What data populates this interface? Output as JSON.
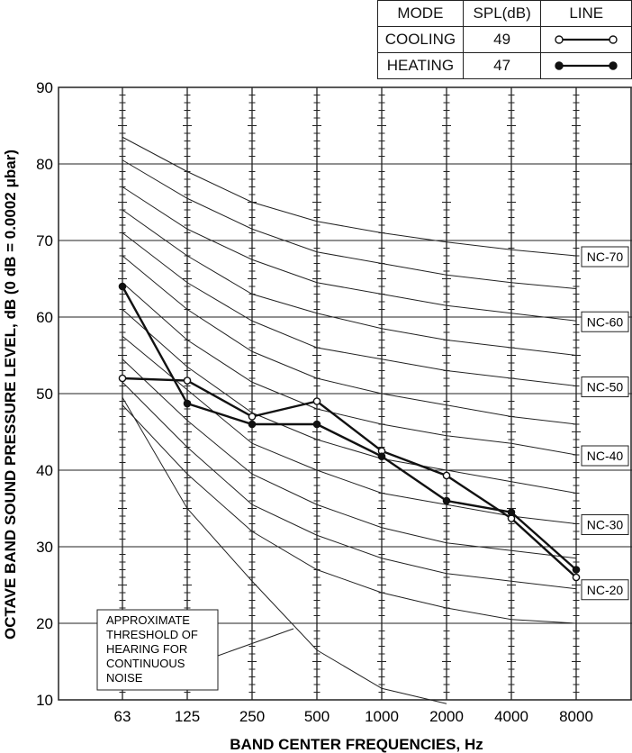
{
  "legend": {
    "headers": [
      "MODE",
      "SPL(dB)",
      "LINE"
    ],
    "rows": [
      {
        "mode": "COOLING",
        "spl": "49",
        "marker": "open-circle"
      },
      {
        "mode": "HEATING",
        "spl": "47",
        "marker": "filled-circle"
      }
    ]
  },
  "annotation": {
    "lines": [
      "APPROXIMATE",
      "THRESHOLD OF",
      "HEARING FOR",
      "CONTINUOUS",
      "NOISE"
    ]
  },
  "chart_data": {
    "type": "line",
    "xlabel": "BAND CENTER FREQUENCIES, Hz",
    "ylabel": "OCTAVE BAND SOUND PRESSURE LEVEL, dB (0 dB = 0.0002 μbar)",
    "categories": [
      "63",
      "125",
      "250",
      "500",
      "1000",
      "2000",
      "4000",
      "8000"
    ],
    "ylim": [
      10,
      90
    ],
    "yticks": [
      10,
      20,
      30,
      40,
      50,
      60,
      70,
      80,
      90
    ],
    "grid": true,
    "series": [
      {
        "name": "COOLING",
        "marker": "open-circle",
        "values": [
          52,
          51.7,
          47,
          49,
          42.5,
          39.3,
          33.7,
          26
        ]
      },
      {
        "name": "HEATING",
        "marker": "filled-circle",
        "values": [
          64,
          48.7,
          46,
          46,
          41.8,
          36,
          34.5,
          27
        ]
      }
    ],
    "nc_curves": [
      {
        "label": "NC-70",
        "values": [
          83.5,
          79,
          75,
          72.5,
          71,
          69.8,
          68.8,
          68
        ]
      },
      {
        "label": "",
        "values": [
          80.5,
          75.5,
          71.5,
          68.5,
          67,
          65.5,
          64.5,
          63.7
        ]
      },
      {
        "label": "NC-60",
        "values": [
          77,
          71.5,
          67.5,
          64.5,
          63,
          61.5,
          60.5,
          59.5
        ]
      },
      {
        "label": "",
        "values": [
          74,
          68,
          63,
          60.5,
          58.5,
          57,
          56,
          55
        ]
      },
      {
        "label": "NC-50",
        "values": [
          71,
          64.5,
          59.5,
          56,
          54.5,
          53,
          52,
          51
        ]
      },
      {
        "label": "",
        "values": [
          68,
          61,
          55.5,
          52,
          50,
          48.5,
          47,
          46
        ]
      },
      {
        "label": "NC-40",
        "values": [
          64.5,
          57,
          51.5,
          48,
          46,
          44.5,
          43.5,
          42
        ]
      },
      {
        "label": "",
        "values": [
          61,
          53.5,
          47.5,
          44,
          41.5,
          40,
          38.5,
          37
        ]
      },
      {
        "label": "NC-30",
        "values": [
          57.5,
          50.5,
          43.5,
          40,
          37,
          35.5,
          34,
          33
        ]
      },
      {
        "label": "",
        "values": [
          54.5,
          46.5,
          39.5,
          35.5,
          32.5,
          30.5,
          29.5,
          28.5
        ]
      },
      {
        "label": "NC-20",
        "values": [
          51.5,
          43,
          35.5,
          31.5,
          28.5,
          26.5,
          25.5,
          24.5
        ]
      },
      {
        "label": "",
        "values": [
          48.5,
          39.5,
          32,
          27,
          24,
          22,
          20.5,
          20
        ]
      },
      {
        "label": "",
        "values": [
          49.5,
          35,
          25.5,
          16.5,
          11.5,
          9.5,
          null,
          null
        ]
      }
    ]
  }
}
